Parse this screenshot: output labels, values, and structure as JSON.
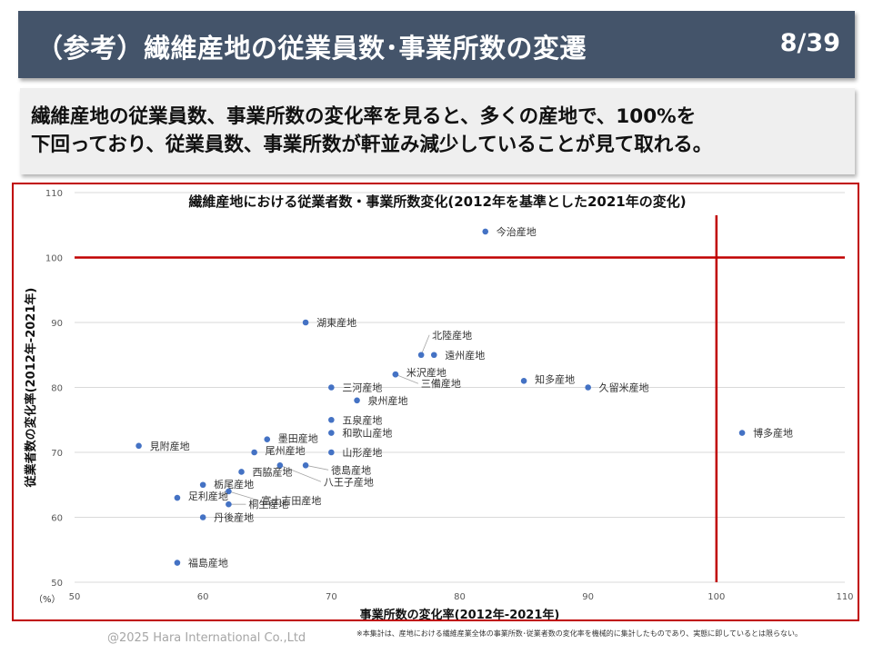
{
  "header": {
    "title": "（参考）繊維産地の従業員数･事業所数の変遷",
    "page": "8/39"
  },
  "summary": {
    "line1": "繊維産地の従業員数、事業所数の変化率を見ると、多くの産地で、100%を",
    "line2": "下回っており、従業員数、事業所数が軒並み減少していることが見て取れる。"
  },
  "chart_data": {
    "type": "scatter",
    "title": "繊維産地における従業者数・事業所数変化(2012年を基準とした2021年の変化)",
    "xlabel": "事業所数の変化率(2012年-2021年)",
    "ylabel": "従業者数の変化率(2012年-2021年)",
    "unit": "（%）",
    "xlim": [
      50,
      110
    ],
    "ylim": [
      50,
      110
    ],
    "xticks": [
      50,
      60,
      70,
      80,
      90,
      100,
      110
    ],
    "yticks": [
      50,
      60,
      70,
      80,
      90,
      100,
      110
    ],
    "grid": "horizontal",
    "reference_lines": {
      "x": 100,
      "y": 100,
      "color": "#c00000"
    },
    "point_color": "#4472c4",
    "points": [
      {
        "label": "今治産地",
        "x": 82,
        "y": 104
      },
      {
        "label": "湖東産地",
        "x": 68,
        "y": 90
      },
      {
        "label": "北陸産地",
        "x": 77,
        "y": 85
      },
      {
        "label": "遠州産地",
        "x": 78,
        "y": 85
      },
      {
        "label": "米沢産地",
        "x": 75,
        "y": 82
      },
      {
        "label": "知多産地",
        "x": 85,
        "y": 81
      },
      {
        "label": "久留米産地",
        "x": 90,
        "y": 80
      },
      {
        "label": "三河産地",
        "x": 70,
        "y": 80
      },
      {
        "label": "三備産地",
        "x": 75,
        "y": 82
      },
      {
        "label": "泉州産地",
        "x": 72,
        "y": 78
      },
      {
        "label": "五泉産地",
        "x": 70,
        "y": 75
      },
      {
        "label": "和歌山産地",
        "x": 70,
        "y": 73
      },
      {
        "label": "博多産地",
        "x": 102,
        "y": 73
      },
      {
        "label": "墨田産地",
        "x": 65,
        "y": 72
      },
      {
        "label": "見附産地",
        "x": 55,
        "y": 71
      },
      {
        "label": "尾州産地",
        "x": 64,
        "y": 70
      },
      {
        "label": "山形産地",
        "x": 70,
        "y": 70
      },
      {
        "label": "徳島産地",
        "x": 68,
        "y": 68
      },
      {
        "label": "八王子産地",
        "x": 66,
        "y": 68
      },
      {
        "label": "西脇産地",
        "x": 63,
        "y": 67
      },
      {
        "label": "栃尾産地",
        "x": 60,
        "y": 65
      },
      {
        "label": "富士吉田産地",
        "x": 62,
        "y": 64
      },
      {
        "label": "足利産地",
        "x": 58,
        "y": 63
      },
      {
        "label": "桐生産地",
        "x": 62,
        "y": 62
      },
      {
        "label": "丹後産地",
        "x": 60,
        "y": 60
      },
      {
        "label": "福島産地",
        "x": 58,
        "y": 53
      }
    ]
  },
  "footer": {
    "copyright": "@2025 Hara International Co.,Ltd",
    "note": "※本集計は、産地における繊維産業全体の事業所数･従業者数の変化率を機械的に集計したものであり、実態に即しているとは限らない。"
  }
}
